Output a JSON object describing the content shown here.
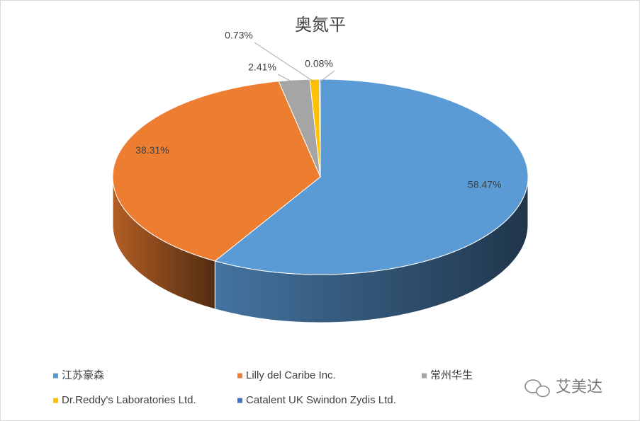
{
  "chart_data": {
    "type": "pie3d",
    "title": "奥氮平",
    "categories": [
      "江苏豪森",
      "Lilly del Caribe Inc.",
      "常州华生",
      "Dr.Reddy's Laboratories Ltd.",
      "Catalent UK Swindon Zydis Ltd."
    ],
    "values": [
      58.47,
      38.31,
      2.41,
      0.73,
      0.08
    ],
    "value_labels": [
      "58.47%",
      "38.31%",
      "2.41%",
      "0.73%",
      "0.08%"
    ],
    "colors": [
      "#5b9bd5",
      "#ed7d31",
      "#a5a5a5",
      "#ffc000",
      "#4472c4"
    ],
    "legend": "bottom"
  },
  "watermark": "艾美达"
}
